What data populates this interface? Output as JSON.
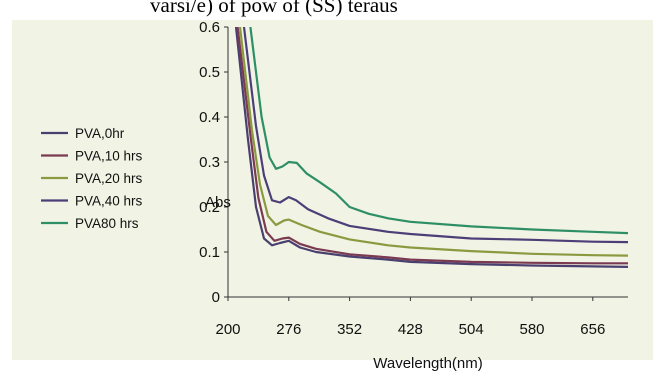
{
  "caption_fragment": "varsi/e) of pow of (SS) teraus",
  "colors": {
    "panel_bg": "#f1f3e4",
    "axis": "#333333"
  },
  "chart_data": {
    "type": "line",
    "xlabel": "Wavelength(nm)",
    "ylabel": "Abs",
    "x_ticks": [
      200,
      276,
      352,
      428,
      504,
      580,
      656
    ],
    "y_ticks": [
      0,
      0.1,
      0.2,
      0.3,
      0.4,
      0.5,
      0.6
    ],
    "y_tick_labels": [
      "0",
      "0.1",
      "0.2",
      "0.3",
      "0.4",
      "0.5",
      "0.6"
    ],
    "xlim": [
      200,
      700
    ],
    "ylim": [
      0,
      0.6
    ],
    "grid": false,
    "legend_position": "left",
    "series": [
      {
        "name": "PVA,0hr",
        "color": "#4a4070",
        "points": [
          [
            210,
            0.6
          ],
          [
            225,
            0.35
          ],
          [
            235,
            0.2
          ],
          [
            245,
            0.13
          ],
          [
            255,
            0.115
          ],
          [
            265,
            0.12
          ],
          [
            276,
            0.125
          ],
          [
            290,
            0.11
          ],
          [
            310,
            0.1
          ],
          [
            352,
            0.09
          ],
          [
            400,
            0.083
          ],
          [
            428,
            0.078
          ],
          [
            504,
            0.073
          ],
          [
            580,
            0.07
          ],
          [
            656,
            0.068
          ],
          [
            700,
            0.067
          ]
        ]
      },
      {
        "name": "PVA,10 hrs",
        "color": "#7a3a52",
        "points": [
          [
            212,
            0.6
          ],
          [
            228,
            0.36
          ],
          [
            238,
            0.22
          ],
          [
            248,
            0.145
          ],
          [
            258,
            0.125
          ],
          [
            268,
            0.13
          ],
          [
            276,
            0.132
          ],
          [
            290,
            0.118
          ],
          [
            310,
            0.107
          ],
          [
            352,
            0.095
          ],
          [
            400,
            0.088
          ],
          [
            428,
            0.083
          ],
          [
            504,
            0.078
          ],
          [
            580,
            0.076
          ],
          [
            656,
            0.075
          ],
          [
            700,
            0.075
          ]
        ]
      },
      {
        "name": "PVA,20 hrs",
        "color": "#8a9a40",
        "points": [
          [
            215,
            0.6
          ],
          [
            230,
            0.37
          ],
          [
            240,
            0.25
          ],
          [
            250,
            0.18
          ],
          [
            260,
            0.16
          ],
          [
            270,
            0.17
          ],
          [
            276,
            0.172
          ],
          [
            292,
            0.16
          ],
          [
            315,
            0.145
          ],
          [
            352,
            0.128
          ],
          [
            400,
            0.115
          ],
          [
            428,
            0.11
          ],
          [
            504,
            0.102
          ],
          [
            580,
            0.096
          ],
          [
            656,
            0.093
          ],
          [
            700,
            0.092
          ]
        ]
      },
      {
        "name": "PVA,40 hrs",
        "color": "#4c3f78",
        "points": [
          [
            220,
            0.6
          ],
          [
            235,
            0.38
          ],
          [
            245,
            0.27
          ],
          [
            255,
            0.215
          ],
          [
            265,
            0.21
          ],
          [
            276,
            0.222
          ],
          [
            285,
            0.215
          ],
          [
            300,
            0.195
          ],
          [
            325,
            0.175
          ],
          [
            352,
            0.158
          ],
          [
            400,
            0.145
          ],
          [
            428,
            0.14
          ],
          [
            504,
            0.13
          ],
          [
            580,
            0.127
          ],
          [
            656,
            0.123
          ],
          [
            700,
            0.122
          ]
        ]
      },
      {
        "name": "PVA80 hrs",
        "color": "#2e8f66",
        "points": [
          [
            228,
            0.6
          ],
          [
            242,
            0.4
          ],
          [
            252,
            0.31
          ],
          [
            260,
            0.285
          ],
          [
            268,
            0.29
          ],
          [
            276,
            0.3
          ],
          [
            286,
            0.298
          ],
          [
            298,
            0.275
          ],
          [
            315,
            0.255
          ],
          [
            335,
            0.23
          ],
          [
            352,
            0.2
          ],
          [
            376,
            0.185
          ],
          [
            400,
            0.175
          ],
          [
            428,
            0.167
          ],
          [
            504,
            0.157
          ],
          [
            580,
            0.15
          ],
          [
            656,
            0.145
          ],
          [
            700,
            0.142
          ]
        ]
      }
    ]
  }
}
